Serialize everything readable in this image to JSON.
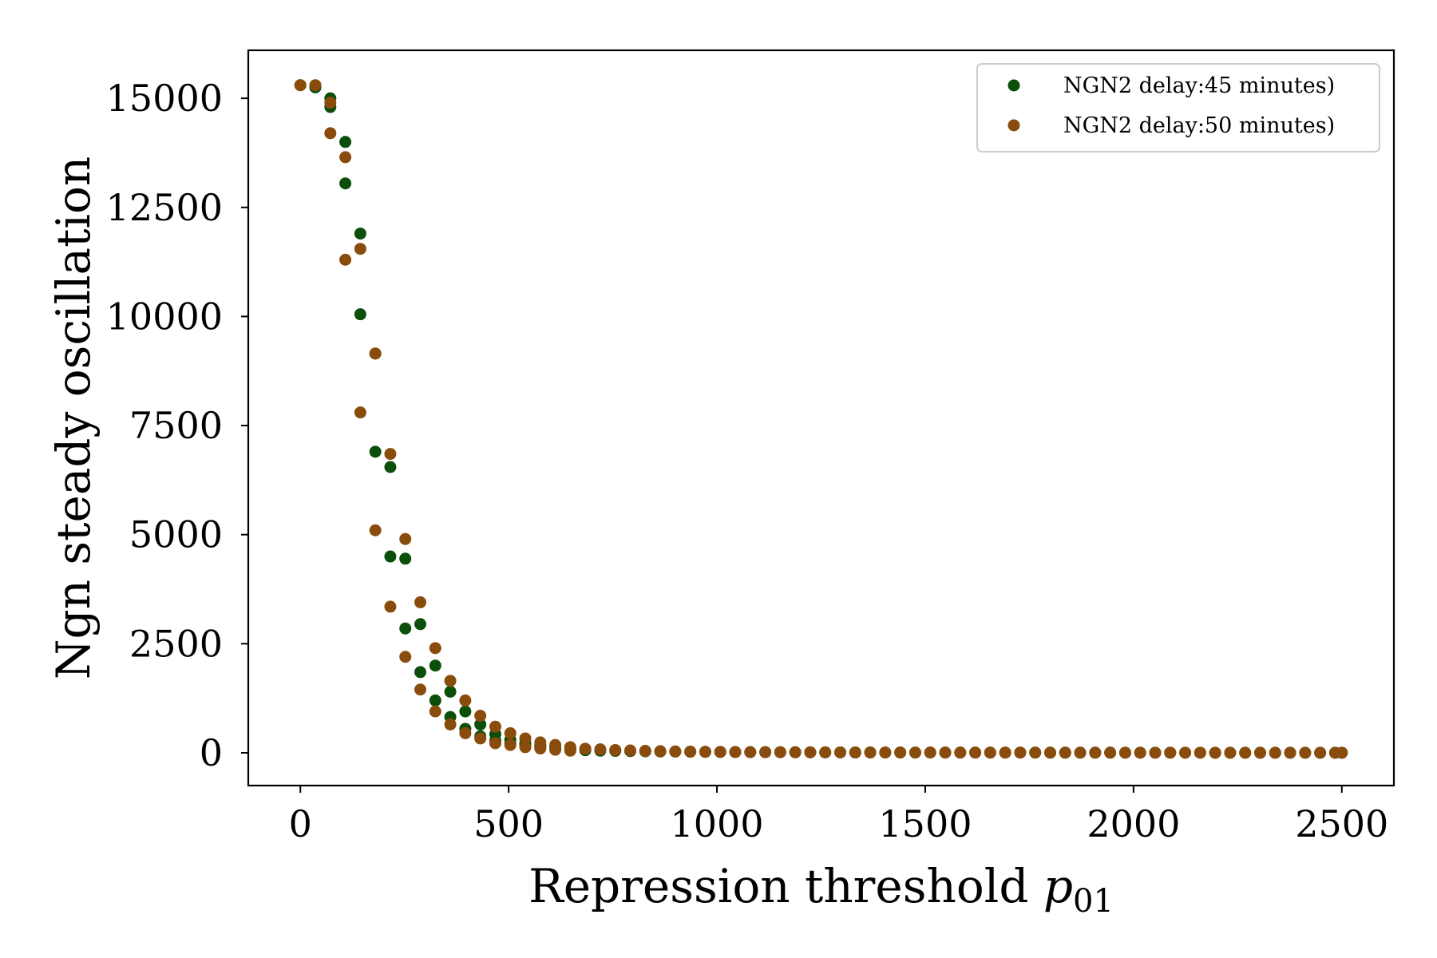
{
  "chart_data": {
    "type": "scatter",
    "title": "",
    "xlabel": "Repression threshold p01",
    "xlabel_main": "Repression threshold ",
    "xlabel_var": "p",
    "xlabel_sub": "01",
    "ylabel": "Ngn steady oscillation",
    "xlim": [
      -125,
      2625
    ],
    "ylim": [
      -750,
      16100
    ],
    "xticks": [
      0,
      500,
      1000,
      1500,
      2000,
      2500
    ],
    "xtick_labels": [
      "0",
      "500",
      "1000",
      "1500",
      "2000",
      "2500"
    ],
    "yticks": [
      0,
      2500,
      5000,
      7500,
      10000,
      12500,
      15000
    ],
    "ytick_labels": [
      "0",
      "2500",
      "5000",
      "7500",
      "10000",
      "12500",
      "15000"
    ],
    "grid": false,
    "legend_position": "top-right",
    "series": [
      {
        "name": "NGN2 delay:45 minutes)",
        "color": "#0b4f0b",
        "x": [
          0,
          36,
          72,
          72,
          108,
          108,
          144,
          144,
          180,
          180,
          216,
          216,
          252,
          252,
          288,
          288,
          324,
          324,
          360,
          360,
          396,
          396,
          432,
          432,
          468,
          468,
          504,
          504,
          540,
          540,
          576,
          576,
          612,
          612,
          648,
          648,
          684,
          720,
          756,
          792,
          828,
          864,
          900,
          936,
          972,
          1008,
          1044,
          1080,
          1116,
          1152,
          1188,
          1224,
          1260,
          1296,
          1332,
          1368,
          1404,
          1440,
          1476,
          1512,
          1548,
          1584,
          1620,
          1656,
          1692,
          1728,
          1764,
          1800,
          1836,
          1872,
          1908,
          1944,
          1980,
          2016,
          2052,
          2088,
          2124,
          2160,
          2196,
          2232,
          2268,
          2304,
          2340,
          2376,
          2412,
          2448,
          2484,
          2500
        ],
        "y": [
          15300,
          15250,
          15000,
          14800,
          14000,
          13050,
          11900,
          10050,
          9150,
          6900,
          6550,
          4500,
          4450,
          2850,
          2950,
          1850,
          2000,
          1200,
          1400,
          820,
          950,
          550,
          650,
          380,
          430,
          280,
          300,
          210,
          220,
          160,
          170,
          120,
          120,
          90,
          90,
          70,
          60,
          50,
          45,
          40,
          35,
          30,
          28,
          25,
          22,
          20,
          18,
          16,
          15,
          14,
          13,
          12,
          11,
          10,
          9,
          9,
          8,
          8,
          7,
          7,
          6,
          6,
          6,
          5,
          5,
          5,
          5,
          4,
          4,
          4,
          4,
          4,
          3,
          3,
          3,
          3,
          3,
          3,
          2,
          2,
          2,
          2,
          2,
          2,
          2,
          2,
          2,
          2
        ]
      },
      {
        "name": "NGN2 delay:50 minutes)",
        "color": "#8a4c0c",
        "x": [
          0,
          36,
          72,
          72,
          108,
          108,
          144,
          144,
          180,
          180,
          216,
          216,
          252,
          252,
          288,
          288,
          324,
          324,
          360,
          360,
          396,
          396,
          432,
          432,
          468,
          468,
          504,
          504,
          540,
          540,
          576,
          576,
          612,
          612,
          648,
          648,
          684,
          720,
          756,
          792,
          828,
          864,
          900,
          936,
          972,
          1008,
          1044,
          1080,
          1116,
          1152,
          1188,
          1224,
          1260,
          1296,
          1332,
          1368,
          1404,
          1440,
          1476,
          1512,
          1548,
          1584,
          1620,
          1656,
          1692,
          1728,
          1764,
          1800,
          1836,
          1872,
          1908,
          1944,
          1980,
          2016,
          2052,
          2088,
          2124,
          2160,
          2196,
          2232,
          2268,
          2304,
          2340,
          2376,
          2412,
          2448,
          2484,
          2500
        ],
        "y": [
          15300,
          15300,
          14900,
          14200,
          13650,
          11300,
          11550,
          7800,
          9150,
          5100,
          6850,
          3350,
          4900,
          2200,
          3450,
          1450,
          2400,
          950,
          1650,
          650,
          1200,
          450,
          850,
          330,
          600,
          220,
          450,
          180,
          330,
          130,
          240,
          100,
          180,
          70,
          130,
          50,
          95,
          80,
          65,
          55,
          45,
          38,
          32,
          28,
          24,
          21,
          19,
          17,
          15,
          14,
          13,
          12,
          11,
          10,
          9,
          9,
          8,
          8,
          7,
          7,
          6,
          6,
          6,
          5,
          5,
          5,
          5,
          4,
          4,
          4,
          4,
          4,
          3,
          3,
          3,
          3,
          3,
          3,
          2,
          2,
          2,
          2,
          2,
          2,
          2,
          2,
          2,
          2
        ]
      }
    ]
  }
}
